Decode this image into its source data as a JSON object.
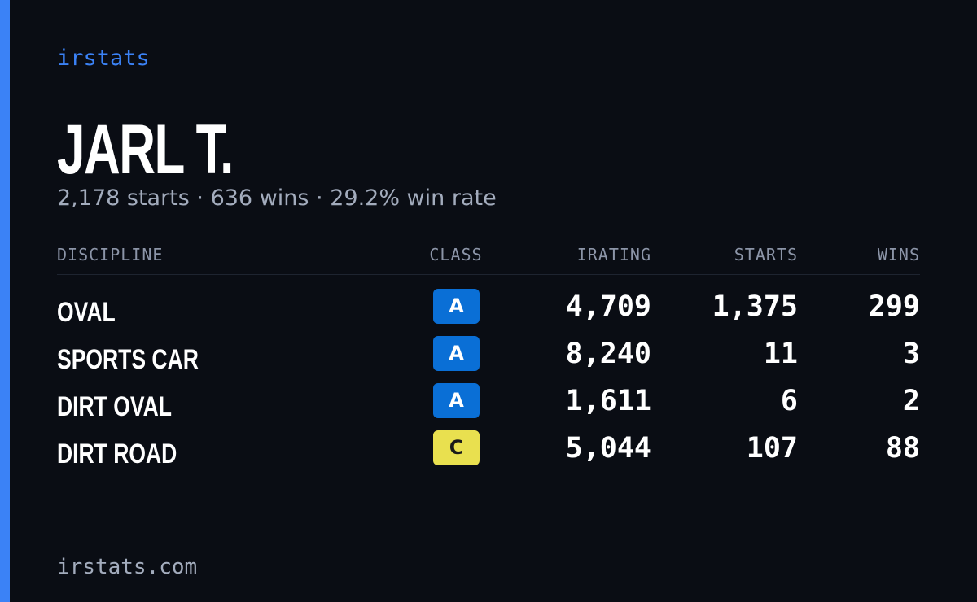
{
  "header": {
    "logo": "irstats",
    "name": "JARL T.",
    "subtitle": "2,178 starts · 636 wins · 29.2% win rate"
  },
  "table": {
    "columns": [
      "DISCIPLINE",
      "CLASS",
      "IRATING",
      "STARTS",
      "WINS"
    ],
    "rows": [
      {
        "discipline": "OVAL",
        "class": "A",
        "class_color": "#0a6fd6",
        "irating": "4,709",
        "starts": "1,375",
        "wins": "299"
      },
      {
        "discipline": "SPORTS CAR",
        "class": "A",
        "class_color": "#0a6fd6",
        "irating": "8,240",
        "starts": "11",
        "wins": "3"
      },
      {
        "discipline": "DIRT OVAL",
        "class": "A",
        "class_color": "#0a6fd6",
        "irating": "1,611",
        "starts": "6",
        "wins": "2"
      },
      {
        "discipline": "DIRT ROAD",
        "class": "C",
        "class_color": "#e9e04f",
        "irating": "5,044",
        "starts": "107",
        "wins": "88"
      }
    ]
  },
  "footer": {
    "url": "irstats.com"
  }
}
